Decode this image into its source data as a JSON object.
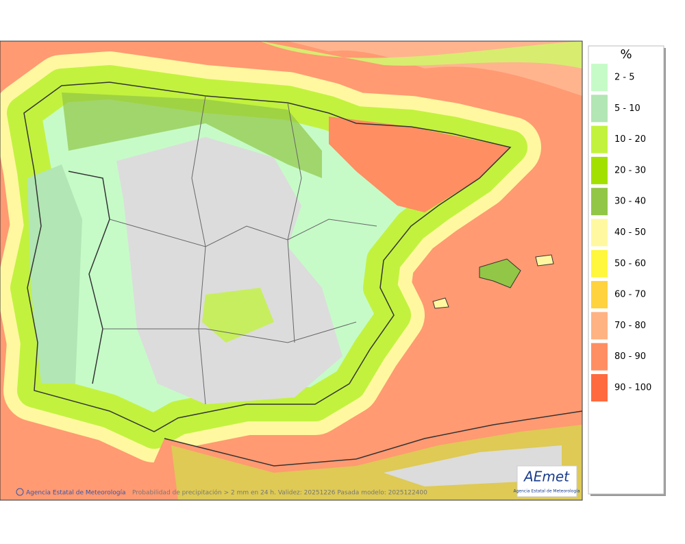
{
  "legend": {
    "title": "%",
    "items": [
      {
        "label": "2 - 5",
        "color": "#c6fbc8"
      },
      {
        "label": "5 - 10",
        "color": "#b2e6b4"
      },
      {
        "label": "10 - 20",
        "color": "#c2f23e"
      },
      {
        "label": "20 - 30",
        "color": "#a2e000"
      },
      {
        "label": "30 - 40",
        "color": "#92c646"
      },
      {
        "label": "40 - 50",
        "color": "#fff8a0"
      },
      {
        "label": "50 - 60",
        "color": "#fff63e"
      },
      {
        "label": "60 - 70",
        "color": "#ffd23e"
      },
      {
        "label": "70 - 80",
        "color": "#ffb282"
      },
      {
        "label": "80 - 90",
        "color": "#ff8e62"
      },
      {
        "label": "90 - 100",
        "color": "#ff6a3e"
      }
    ]
  },
  "footer": {
    "agency": "Agencia Estatal de Meteorología",
    "caption": "Probabilidad de precipitación > 2 mm en 24 h. Validez: 20251226 Pasada modelo: 2025122400"
  },
  "logo": {
    "name": "AEmet",
    "subtitle": "Agencia Estatal de Meteorología"
  }
}
